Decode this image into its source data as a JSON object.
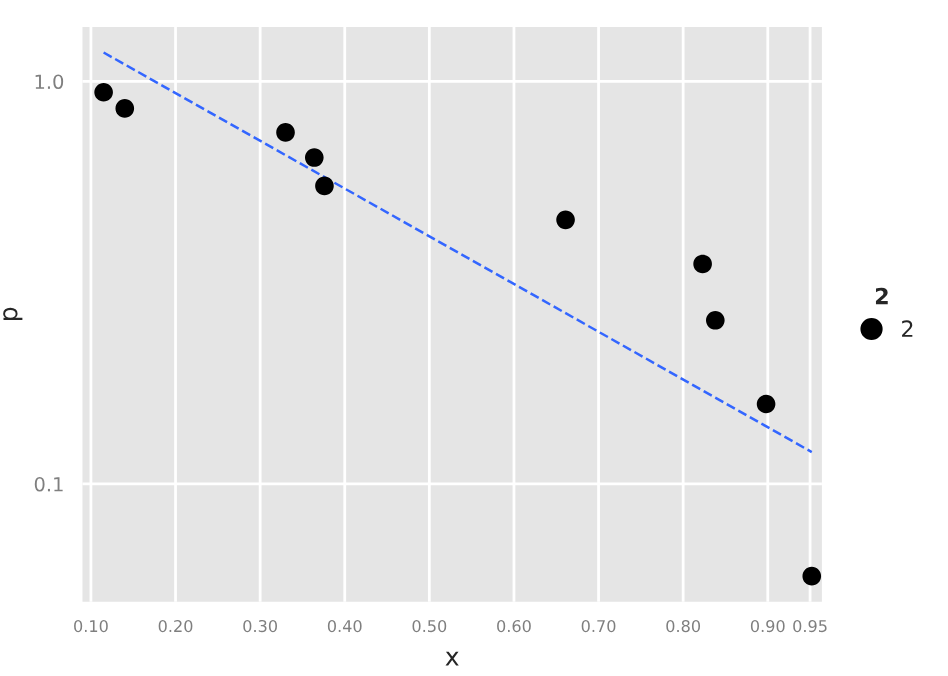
{
  "chart_data": {
    "type": "scatter",
    "xlabel": "x",
    "ylabel": "p",
    "legend_title": "2",
    "legend": "right",
    "grid": true,
    "marker": "circle",
    "log": "y",
    "series": [
      {
        "name": "2",
        "color": "#000000",
        "x": [
          0.115,
          0.14,
          0.33,
          0.364,
          0.376,
          0.661,
          0.823,
          0.838,
          0.898,
          0.952
        ],
        "values": [
          0.94,
          0.857,
          0.747,
          0.647,
          0.55,
          0.453,
          0.352,
          0.255,
          0.158,
          0.059
        ]
      },
      {
        "type": "line",
        "color": "#3366ff",
        "line_style": "dashed",
        "marker": "none",
        "x": [
          0.115,
          0.952
        ],
        "values": [
          1.18,
          0.12
        ]
      }
    ],
    "xlim": [
      0.09,
      0.964
    ],
    "ylim": [
      0.051,
      1.365
    ],
    "xticks": [
      {
        "value": 0.1,
        "label": "0.10"
      },
      {
        "value": 0.2,
        "label": "0.20"
      },
      {
        "value": 0.3,
        "label": "0.30"
      },
      {
        "value": 0.4,
        "label": "0.40"
      },
      {
        "value": 0.5,
        "label": "0.50"
      },
      {
        "value": 0.6,
        "label": "0.60"
      },
      {
        "value": 0.7,
        "label": "0.70"
      },
      {
        "value": 0.8,
        "label": "0.80"
      },
      {
        "value": 0.9,
        "label": "0.90"
      },
      {
        "value": 0.95,
        "label": "0.95"
      }
    ],
    "yticks": [
      0.1,
      {
        "value": 1.0,
        "label": "1.0"
      }
    ]
  }
}
